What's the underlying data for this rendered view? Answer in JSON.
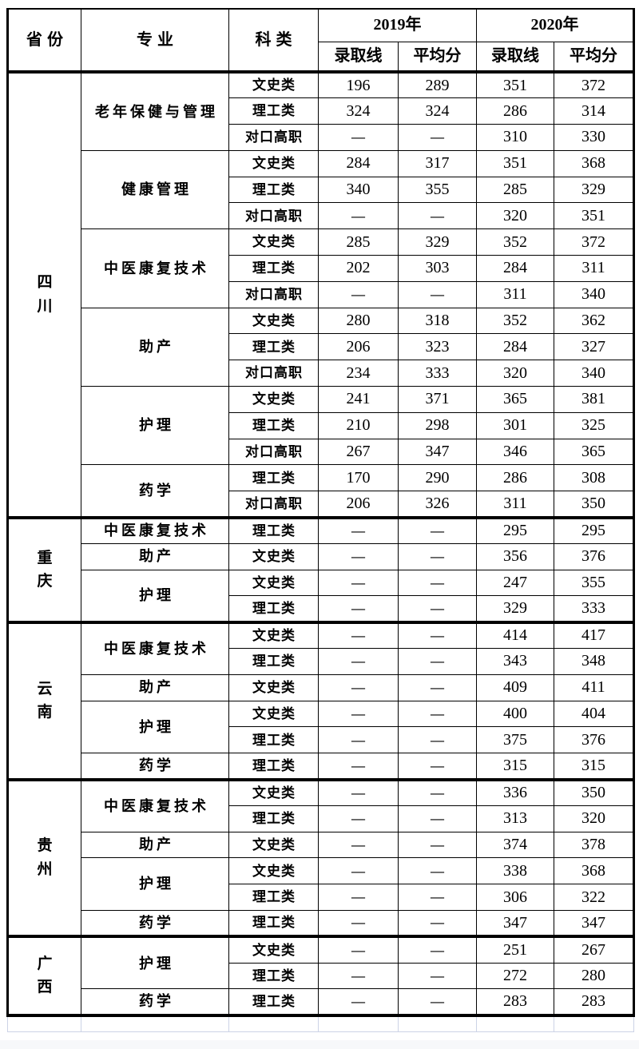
{
  "page": {
    "background": "#ffffff",
    "bottom_strip_color": "#f7f8fa"
  },
  "table": {
    "border_color": "#000000",
    "ghost_border_color": "#ccd3e6",
    "empty_placeholder": "—",
    "header": {
      "province": "省份",
      "major": "专业",
      "category": "科类",
      "year_2019": "2019年",
      "year_2020": "2020年",
      "admission_line": "录取线",
      "average_score": "平均分"
    },
    "sections": [
      {
        "province": "四川",
        "majors": [
          {
            "name": "老年保健与管理",
            "rows": [
              {
                "category": "文史类",
                "scores": [
                  "196",
                  "289",
                  "351",
                  "372"
                ]
              },
              {
                "category": "理工类",
                "scores": [
                  "324",
                  "324",
                  "286",
                  "314"
                ]
              },
              {
                "category": "对口高职",
                "scores": [
                  "—",
                  "—",
                  "310",
                  "330"
                ]
              }
            ]
          },
          {
            "name": "健康管理",
            "rows": [
              {
                "category": "文史类",
                "scores": [
                  "284",
                  "317",
                  "351",
                  "368"
                ]
              },
              {
                "category": "理工类",
                "scores": [
                  "340",
                  "355",
                  "285",
                  "329"
                ]
              },
              {
                "category": "对口高职",
                "scores": [
                  "—",
                  "—",
                  "320",
                  "351"
                ]
              }
            ]
          },
          {
            "name": "中医康复技术",
            "rows": [
              {
                "category": "文史类",
                "scores": [
                  "285",
                  "329",
                  "352",
                  "372"
                ]
              },
              {
                "category": "理工类",
                "scores": [
                  "202",
                  "303",
                  "284",
                  "311"
                ]
              },
              {
                "category": "对口高职",
                "scores": [
                  "—",
                  "—",
                  "311",
                  "340"
                ]
              }
            ]
          },
          {
            "name": "助产",
            "rows": [
              {
                "category": "文史类",
                "scores": [
                  "280",
                  "318",
                  "352",
                  "362"
                ]
              },
              {
                "category": "理工类",
                "scores": [
                  "206",
                  "323",
                  "284",
                  "327"
                ]
              },
              {
                "category": "对口高职",
                "scores": [
                  "234",
                  "333",
                  "320",
                  "340"
                ]
              }
            ]
          },
          {
            "name": "护理",
            "rows": [
              {
                "category": "文史类",
                "scores": [
                  "241",
                  "371",
                  "365",
                  "381"
                ]
              },
              {
                "category": "理工类",
                "scores": [
                  "210",
                  "298",
                  "301",
                  "325"
                ]
              },
              {
                "category": "对口高职",
                "scores": [
                  "267",
                  "347",
                  "346",
                  "365"
                ]
              }
            ]
          },
          {
            "name": "药学",
            "rows": [
              {
                "category": "理工类",
                "scores": [
                  "170",
                  "290",
                  "286",
                  "308"
                ]
              },
              {
                "category": "对口高职",
                "scores": [
                  "206",
                  "326",
                  "311",
                  "350"
                ]
              }
            ]
          }
        ]
      },
      {
        "province": "重庆",
        "majors": [
          {
            "name": "中医康复技术",
            "rows": [
              {
                "category": "理工类",
                "scores": [
                  "—",
                  "—",
                  "295",
                  "295"
                ]
              }
            ]
          },
          {
            "name": "助产",
            "rows": [
              {
                "category": "文史类",
                "scores": [
                  "—",
                  "—",
                  "356",
                  "376"
                ]
              }
            ]
          },
          {
            "name": "护理",
            "rows": [
              {
                "category": "文史类",
                "scores": [
                  "—",
                  "—",
                  "247",
                  "355"
                ]
              },
              {
                "category": "理工类",
                "scores": [
                  "—",
                  "—",
                  "329",
                  "333"
                ]
              }
            ]
          }
        ]
      },
      {
        "province": "云南",
        "majors": [
          {
            "name": "中医康复技术",
            "rows": [
              {
                "category": "文史类",
                "scores": [
                  "—",
                  "—",
                  "414",
                  "417"
                ]
              },
              {
                "category": "理工类",
                "scores": [
                  "—",
                  "—",
                  "343",
                  "348"
                ]
              }
            ]
          },
          {
            "name": "助产",
            "rows": [
              {
                "category": "文史类",
                "scores": [
                  "—",
                  "—",
                  "409",
                  "411"
                ]
              }
            ]
          },
          {
            "name": "护理",
            "rows": [
              {
                "category": "文史类",
                "scores": [
                  "—",
                  "—",
                  "400",
                  "404"
                ]
              },
              {
                "category": "理工类",
                "scores": [
                  "—",
                  "—",
                  "375",
                  "376"
                ]
              }
            ]
          },
          {
            "name": "药学",
            "rows": [
              {
                "category": "理工类",
                "scores": [
                  "—",
                  "—",
                  "315",
                  "315"
                ]
              }
            ]
          }
        ]
      },
      {
        "province": "贵州",
        "majors": [
          {
            "name": "中医康复技术",
            "rows": [
              {
                "category": "文史类",
                "scores": [
                  "—",
                  "—",
                  "336",
                  "350"
                ]
              },
              {
                "category": "理工类",
                "scores": [
                  "—",
                  "—",
                  "313",
                  "320"
                ]
              }
            ]
          },
          {
            "name": "助产",
            "rows": [
              {
                "category": "文史类",
                "scores": [
                  "—",
                  "—",
                  "374",
                  "378"
                ]
              }
            ]
          },
          {
            "name": "护理",
            "rows": [
              {
                "category": "文史类",
                "scores": [
                  "—",
                  "—",
                  "338",
                  "368"
                ]
              },
              {
                "category": "理工类",
                "scores": [
                  "—",
                  "—",
                  "306",
                  "322"
                ]
              }
            ]
          },
          {
            "name": "药学",
            "rows": [
              {
                "category": "理工类",
                "scores": [
                  "—",
                  "—",
                  "347",
                  "347"
                ]
              }
            ]
          }
        ]
      },
      {
        "province": "广西",
        "majors": [
          {
            "name": "护理",
            "rows": [
              {
                "category": "文史类",
                "scores": [
                  "—",
                  "—",
                  "251",
                  "267"
                ]
              },
              {
                "category": "理工类",
                "scores": [
                  "—",
                  "—",
                  "272",
                  "280"
                ]
              }
            ]
          },
          {
            "name": "药学",
            "rows": [
              {
                "category": "理工类",
                "scores": [
                  "—",
                  "—",
                  "283",
                  "283"
                ]
              }
            ]
          }
        ]
      }
    ]
  }
}
